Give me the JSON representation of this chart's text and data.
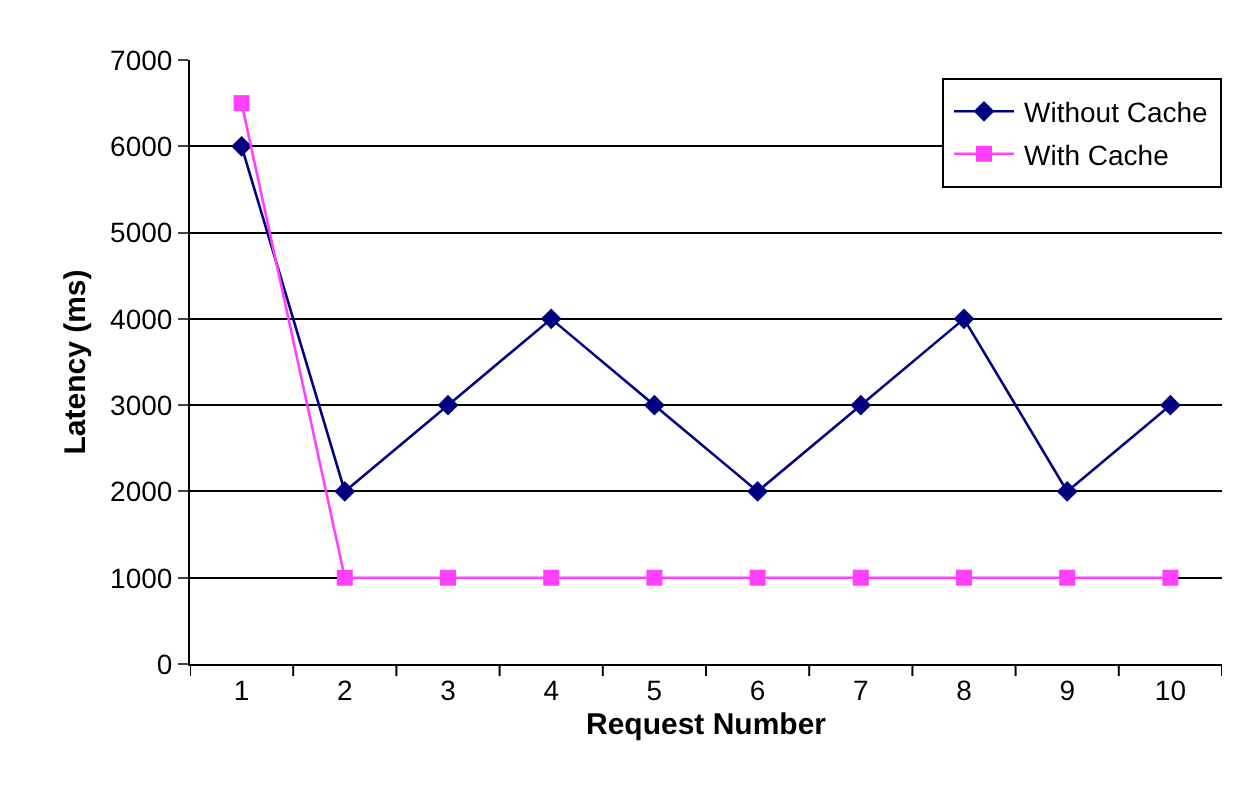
{
  "chart_data": {
    "type": "line",
    "xlabel": "Request Number",
    "ylabel": "Latency (ms)",
    "categories": [
      "1",
      "2",
      "3",
      "4",
      "5",
      "6",
      "7",
      "8",
      "9",
      "10"
    ],
    "series": [
      {
        "name": "Without Cache",
        "color": "#000080",
        "marker": "diamond",
        "values": [
          6000,
          2000,
          3000,
          4000,
          3000,
          2000,
          3000,
          4000,
          2000,
          3000
        ]
      },
      {
        "name": "With Cache",
        "color": "#ff40ff",
        "marker": "square",
        "values": [
          6500,
          1000,
          1000,
          1000,
          1000,
          1000,
          1000,
          1000,
          1000,
          1000
        ]
      }
    ],
    "ylim": [
      0,
      7000
    ],
    "yticks": [
      0,
      1000,
      2000,
      3000,
      4000,
      5000,
      6000,
      7000
    ],
    "grid": "y",
    "legend": "top right",
    "line_style": "solid"
  }
}
